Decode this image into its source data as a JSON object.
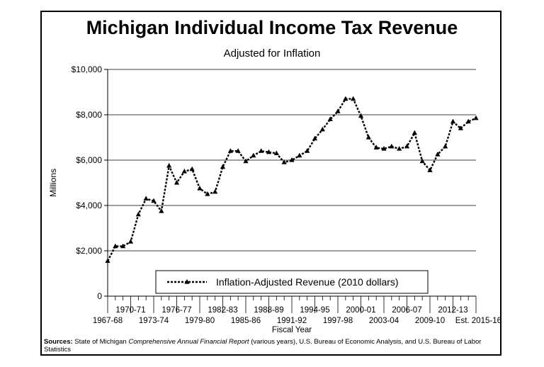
{
  "chart_data": {
    "type": "line",
    "title": "Michigan Individual Income Tax Revenue",
    "subtitle": "Adjusted for Inflation",
    "xlabel": "Fiscal Year",
    "ylabel": "Millions",
    "ylim": [
      0,
      10000
    ],
    "y_ticks": [
      0,
      2000,
      4000,
      6000,
      8000,
      10000
    ],
    "y_tick_labels": [
      "0",
      "$2,000",
      "$4,000",
      "$6,000",
      "$8,000",
      "$10,000"
    ],
    "x_tick_labels_lower": [
      "1967-68",
      "1973-74",
      "1979-80",
      "1985-86",
      "1991-92",
      "1997-98",
      "2003-04",
      "2009-10",
      "Est. 2015-16"
    ],
    "x_tick_labels_upper": [
      "1970-71",
      "1976-77",
      "1982-83",
      "1988-89",
      "1994-95",
      "2000-01",
      "2006-07",
      "2012-13"
    ],
    "legend_position": "bottom-center",
    "grid": "horizontal",
    "series": [
      {
        "name": "Inflation-Adjusted Revenue (2010 dollars)",
        "color": "#000000",
        "style": "dotted-with-triangle-markers",
        "x": [
          "1967-68",
          "1968-69",
          "1969-70",
          "1970-71",
          "1971-72",
          "1972-73",
          "1973-74",
          "1974-75",
          "1975-76",
          "1976-77",
          "1977-78",
          "1978-79",
          "1979-80",
          "1980-81",
          "1981-82",
          "1982-83",
          "1983-84",
          "1984-85",
          "1985-86",
          "1986-87",
          "1987-88",
          "1988-89",
          "1989-90",
          "1990-91",
          "1991-92",
          "1992-93",
          "1993-94",
          "1994-95",
          "1995-96",
          "1996-97",
          "1997-98",
          "1998-99",
          "1999-00",
          "2000-01",
          "2001-02",
          "2002-03",
          "2003-04",
          "2004-05",
          "2005-06",
          "2006-07",
          "2007-08",
          "2008-09",
          "2009-10",
          "2010-11",
          "2011-12",
          "2012-13",
          "2013-14",
          "2014-15",
          "2015-16"
        ],
        "values": [
          1550,
          2200,
          2200,
          2400,
          3600,
          4300,
          4200,
          3750,
          5750,
          5000,
          5500,
          5600,
          4750,
          4500,
          4600,
          5700,
          6400,
          6400,
          5950,
          6200,
          6400,
          6350,
          6300,
          5900,
          6000,
          6200,
          6400,
          6950,
          7350,
          7800,
          8150,
          8700,
          8700,
          7950,
          7000,
          6550,
          6500,
          6600,
          6500,
          6600,
          7200,
          5950,
          5550,
          6250,
          6600,
          7700,
          7400,
          7700,
          7850
        ]
      }
    ]
  },
  "sources": {
    "label": "Sources:",
    "text_before": "State of Michigan ",
    "italic": "Comprehensive Annual Financial Report",
    "text_after": " (various years), U.S. Bureau of Economic Analysis, and U.S. Bureau of Labor Statistics"
  }
}
